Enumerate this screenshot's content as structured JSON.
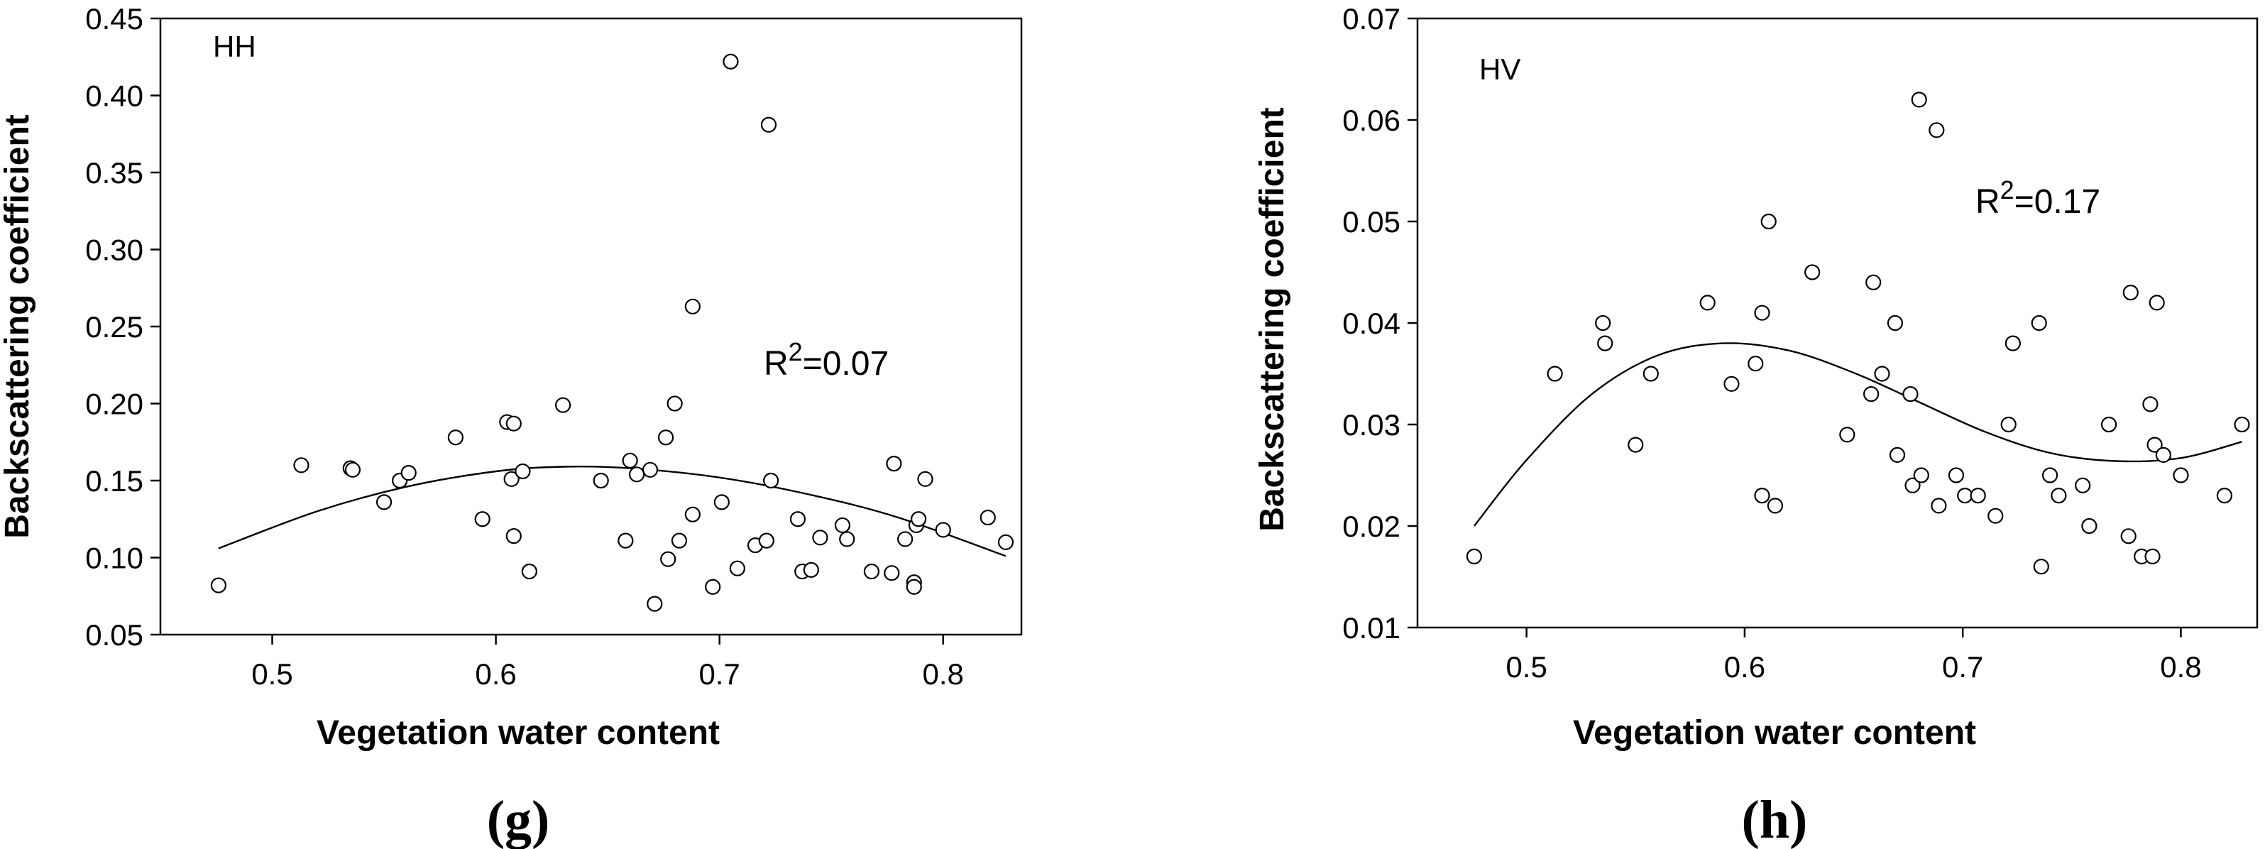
{
  "chart_data": [
    {
      "type": "scatter",
      "panel_label": "HH",
      "caption": "(g)",
      "xlabel": "Vegetation water content",
      "ylabel": "Backscattering coefficient",
      "annotation": {
        "prefix": "R",
        "sup": "2",
        "suffix": "=0.07"
      },
      "xlim": [
        0.45,
        0.835
      ],
      "ylim": [
        0.05,
        0.45
      ],
      "xticks": [
        0.5,
        0.6,
        0.7,
        0.8
      ],
      "xtick_labels": [
        "0.5",
        "0.6",
        "0.7",
        "0.8"
      ],
      "yticks": [
        0.05,
        0.1,
        0.15,
        0.2,
        0.25,
        0.3,
        0.35,
        0.4,
        0.45
      ],
      "ytick_labels": [
        "0.05",
        "0.10",
        "0.15",
        "0.20",
        "0.25",
        "0.30",
        "0.35",
        "0.40",
        "0.45"
      ],
      "grid": false,
      "points": [
        [
          0.476,
          0.082
        ],
        [
          0.513,
          0.16
        ],
        [
          0.535,
          0.158
        ],
        [
          0.536,
          0.157
        ],
        [
          0.55,
          0.136
        ],
        [
          0.557,
          0.15
        ],
        [
          0.561,
          0.155
        ],
        [
          0.582,
          0.178
        ],
        [
          0.594,
          0.125
        ],
        [
          0.605,
          0.188
        ],
        [
          0.607,
          0.151
        ],
        [
          0.608,
          0.187
        ],
        [
          0.608,
          0.114
        ],
        [
          0.612,
          0.156
        ],
        [
          0.615,
          0.091
        ],
        [
          0.63,
          0.199
        ],
        [
          0.647,
          0.15
        ],
        [
          0.658,
          0.111
        ],
        [
          0.66,
          0.163
        ],
        [
          0.663,
          0.154
        ],
        [
          0.669,
          0.157
        ],
        [
          0.671,
          0.07
        ],
        [
          0.676,
          0.178
        ],
        [
          0.677,
          0.099
        ],
        [
          0.68,
          0.2
        ],
        [
          0.682,
          0.111
        ],
        [
          0.688,
          0.128
        ],
        [
          0.688,
          0.263
        ],
        [
          0.697,
          0.081
        ],
        [
          0.701,
          0.136
        ],
        [
          0.705,
          0.422
        ],
        [
          0.708,
          0.093
        ],
        [
          0.716,
          0.108
        ],
        [
          0.721,
          0.111
        ],
        [
          0.722,
          0.381
        ],
        [
          0.723,
          0.15
        ],
        [
          0.735,
          0.125
        ],
        [
          0.737,
          0.091
        ],
        [
          0.741,
          0.092
        ],
        [
          0.745,
          0.113
        ],
        [
          0.755,
          0.121
        ],
        [
          0.757,
          0.112
        ],
        [
          0.768,
          0.091
        ],
        [
          0.777,
          0.09
        ],
        [
          0.778,
          0.161
        ],
        [
          0.783,
          0.112
        ],
        [
          0.787,
          0.084
        ],
        [
          0.787,
          0.081
        ],
        [
          0.788,
          0.121
        ],
        [
          0.789,
          0.125
        ],
        [
          0.792,
          0.151
        ],
        [
          0.8,
          0.118
        ],
        [
          0.82,
          0.126
        ],
        [
          0.828,
          0.11
        ]
      ],
      "fit_curve": [
        [
          0.476,
          0.106
        ],
        [
          0.52,
          0.13
        ],
        [
          0.56,
          0.146
        ],
        [
          0.6,
          0.156
        ],
        [
          0.63,
          0.159
        ],
        [
          0.66,
          0.158
        ],
        [
          0.7,
          0.152
        ],
        [
          0.74,
          0.141
        ],
        [
          0.78,
          0.126
        ],
        [
          0.828,
          0.101
        ]
      ]
    },
    {
      "type": "scatter",
      "panel_label": "HV",
      "caption": "(h)",
      "xlabel": "Vegetation water content",
      "ylabel": "Backscattering coefficient",
      "annotation": {
        "prefix": "R",
        "sup": "2",
        "suffix": "=0.17"
      },
      "xlim": [
        0.45,
        0.835
      ],
      "ylim": [
        0.01,
        0.07
      ],
      "xticks": [
        0.5,
        0.6,
        0.7,
        0.8
      ],
      "xtick_labels": [
        "0.5",
        "0.6",
        "0.7",
        "0.8"
      ],
      "yticks": [
        0.01,
        0.02,
        0.03,
        0.04,
        0.05,
        0.06,
        0.07
      ],
      "ytick_labels": [
        "0.01",
        "0.02",
        "0.03",
        "0.04",
        "0.05",
        "0.06",
        "0.07"
      ],
      "grid": false,
      "points": [
        [
          0.476,
          0.017
        ],
        [
          0.513,
          0.035
        ],
        [
          0.535,
          0.04
        ],
        [
          0.536,
          0.038
        ],
        [
          0.55,
          0.028
        ],
        [
          0.557,
          0.035
        ],
        [
          0.583,
          0.042
        ],
        [
          0.594,
          0.034
        ],
        [
          0.605,
          0.036
        ],
        [
          0.608,
          0.041
        ],
        [
          0.608,
          0.023
        ],
        [
          0.611,
          0.05
        ],
        [
          0.614,
          0.022
        ],
        [
          0.631,
          0.045
        ],
        [
          0.647,
          0.029
        ],
        [
          0.658,
          0.033
        ],
        [
          0.659,
          0.044
        ],
        [
          0.663,
          0.035
        ],
        [
          0.669,
          0.04
        ],
        [
          0.67,
          0.027
        ],
        [
          0.676,
          0.033
        ],
        [
          0.677,
          0.024
        ],
        [
          0.68,
          0.062
        ],
        [
          0.681,
          0.025
        ],
        [
          0.688,
          0.059
        ],
        [
          0.689,
          0.022
        ],
        [
          0.697,
          0.025
        ],
        [
          0.701,
          0.023
        ],
        [
          0.707,
          0.023
        ],
        [
          0.715,
          0.021
        ],
        [
          0.721,
          0.03
        ],
        [
          0.723,
          0.038
        ],
        [
          0.735,
          0.04
        ],
        [
          0.736,
          0.016
        ],
        [
          0.74,
          0.025
        ],
        [
          0.744,
          0.023
        ],
        [
          0.755,
          0.024
        ],
        [
          0.758,
          0.02
        ],
        [
          0.767,
          0.03
        ],
        [
          0.776,
          0.019
        ],
        [
          0.777,
          0.043
        ],
        [
          0.782,
          0.017
        ],
        [
          0.786,
          0.032
        ],
        [
          0.787,
          0.017
        ],
        [
          0.788,
          0.028
        ],
        [
          0.789,
          0.042
        ],
        [
          0.792,
          0.027
        ],
        [
          0.8,
          0.025
        ],
        [
          0.82,
          0.023
        ],
        [
          0.828,
          0.03
        ]
      ],
      "fit_curve": [
        [
          0.476,
          0.02
        ],
        [
          0.5,
          0.0265
        ],
        [
          0.53,
          0.033
        ],
        [
          0.56,
          0.0368
        ],
        [
          0.59,
          0.038
        ],
        [
          0.62,
          0.0373
        ],
        [
          0.65,
          0.0351
        ],
        [
          0.68,
          0.0322
        ],
        [
          0.71,
          0.0293
        ],
        [
          0.74,
          0.0272
        ],
        [
          0.77,
          0.0264
        ],
        [
          0.8,
          0.0267
        ],
        [
          0.828,
          0.0283
        ]
      ]
    }
  ]
}
